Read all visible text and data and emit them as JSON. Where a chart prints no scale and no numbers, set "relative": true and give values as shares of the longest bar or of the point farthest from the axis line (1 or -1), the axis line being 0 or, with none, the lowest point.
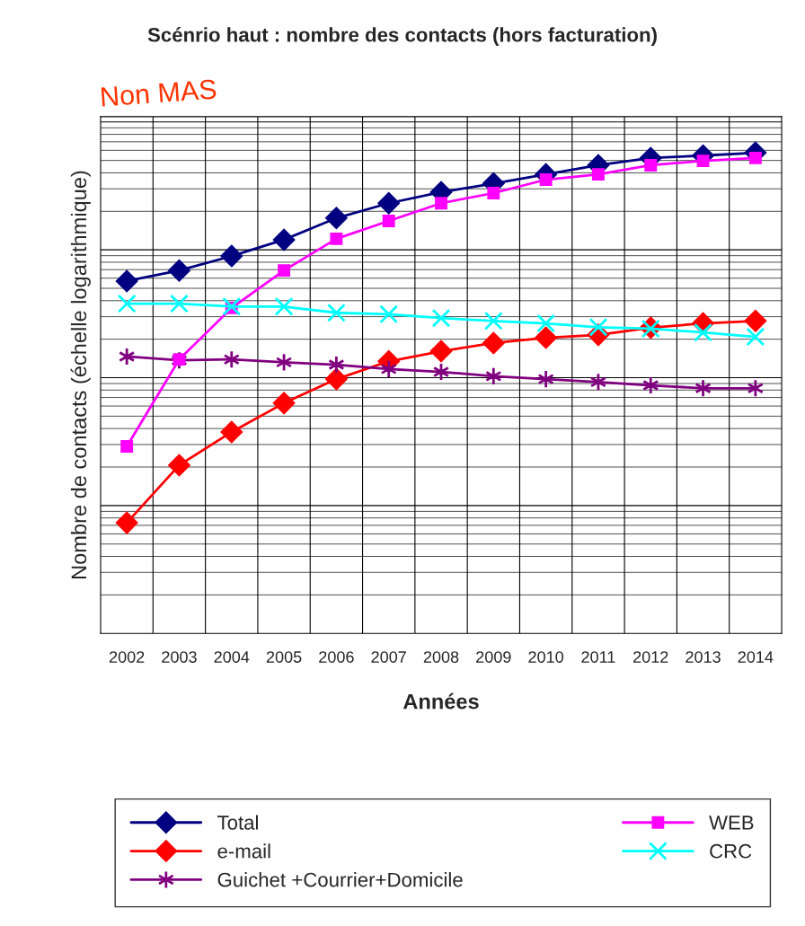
{
  "chart_data": {
    "type": "line",
    "title": "Scénrio haut : nombre des contacts (hors facturation)",
    "subtitle": "Non MAS",
    "xlabel": "Années",
    "ylabel": "Nombre de contacts (échelle logarithmique)",
    "relative": true,
    "grid": true,
    "legend": "bottom",
    "categories": [
      "2002",
      "2003",
      "2004",
      "2005",
      "2006",
      "2007",
      "2008",
      "2009",
      "2010",
      "2011",
      "2012",
      "2013",
      "2014"
    ],
    "series": [
      {
        "name": "Total",
        "color": "#000080",
        "marker": "diamond",
        "values": [
          0.733,
          0.755,
          0.785,
          0.819,
          0.864,
          0.895,
          0.918,
          0.936,
          0.955,
          0.974,
          0.989,
          0.994,
          1
        ]
      },
      {
        "name": "e-mail",
        "color": "#ff0000",
        "marker": "diamond",
        "values": [
          0.23,
          0.35,
          0.419,
          0.479,
          0.529,
          0.566,
          0.587,
          0.604,
          0.615,
          0.621,
          0.636,
          0.645,
          0.65
        ]
      },
      {
        "name": "Guichet +Courrier+Domicile",
        "color": "#800080",
        "marker": "cross",
        "values": [
          0.576,
          0.568,
          0.57,
          0.564,
          0.559,
          0.55,
          0.544,
          0.535,
          0.529,
          0.523,
          0.516,
          0.51,
          0.51
        ]
      },
      {
        "name": "WEB",
        "color": "#ff00ff",
        "marker": "square",
        "values": [
          0.389,
          0.57,
          0.677,
          0.755,
          0.821,
          0.858,
          0.895,
          0.916,
          0.944,
          0.955,
          0.974,
          0.983,
          0.989
        ]
      },
      {
        "name": "CRC",
        "color": "#00ffff",
        "marker": "cross",
        "values": [
          0.686,
          0.686,
          0.68,
          0.68,
          0.667,
          0.664,
          0.656,
          0.65,
          0.645,
          0.637,
          0.634,
          0.626,
          0.617
        ]
      }
    ]
  }
}
